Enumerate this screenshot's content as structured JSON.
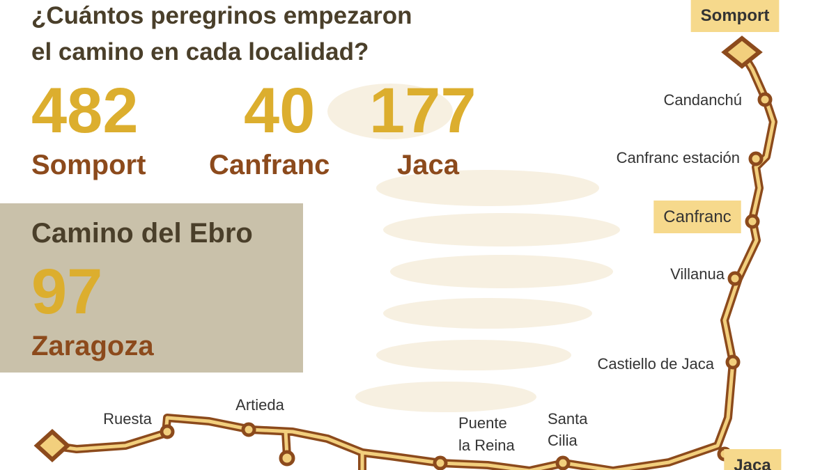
{
  "title": [
    "¿Cuántos peregrinos empezaron",
    "el camino en cada localidad?"
  ],
  "stats": [
    {
      "value": 482,
      "place": "Somport"
    },
    {
      "value": 40,
      "place": "Canfranc"
    },
    {
      "value": 177,
      "place": "Jaca"
    }
  ],
  "ebro": {
    "title": "Camino del Ebro",
    "value": 97,
    "place": "Zaragoza"
  },
  "places": [
    {
      "lines": [
        "Somport"
      ],
      "highlight": true
    },
    {
      "lines": [
        "Candanchú"
      ],
      "highlight": false
    },
    {
      "lines": [
        "Canfranc estación"
      ],
      "highlight": false
    },
    {
      "lines": [
        "Canfranc"
      ],
      "highlight": true
    },
    {
      "lines": [
        "Villanua"
      ],
      "highlight": false
    },
    {
      "lines": [
        "Castiello de Jaca"
      ],
      "highlight": false
    },
    {
      "lines": [
        "Jaca"
      ],
      "highlight": true
    },
    {
      "lines": [
        "Santa",
        "Cilia"
      ],
      "highlight": false
    },
    {
      "lines": [
        "Puente",
        "la Reina"
      ],
      "highlight": false
    },
    {
      "lines": [
        "Artieda"
      ],
      "highlight": false
    },
    {
      "lines": [
        "Ruesta"
      ],
      "highlight": false
    }
  ]
}
